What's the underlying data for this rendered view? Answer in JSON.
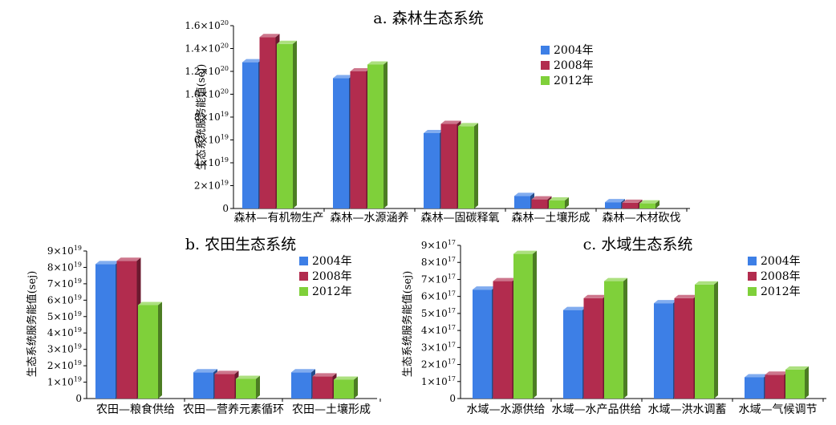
{
  "colors": {
    "s2004": "#3d7fe6",
    "s2008": "#b22c4e",
    "s2012": "#7fd03a"
  },
  "chart_data": [
    {
      "type": "bar",
      "title": "a. 森林生态系统",
      "ylabel": "生态系统服务能值(sej)",
      "categories": [
        "森林—有机物生产",
        "森林—水源涵养",
        "森林—固碳释氧",
        "森林—土壤形成",
        "森林—木材砍伐"
      ],
      "series": [
        {
          "name": "2004年",
          "values": [
            1.28e+20,
            1.14e+20,
            6.6e+19,
            1.1e+19,
            5.5e+18
          ]
        },
        {
          "name": "2008年",
          "values": [
            1.5e+20,
            1.2e+20,
            7.4e+19,
            8e+18,
            5e+18
          ]
        },
        {
          "name": "2012年",
          "values": [
            1.44e+20,
            1.26e+20,
            7.2e+19,
            7e+18,
            4.5e+18
          ]
        }
      ],
      "ylim": [
        0,
        1.6e+20
      ],
      "yticks": [
        {
          "m": "0",
          "e": ""
        },
        {
          "m": "2×10",
          "e": "19"
        },
        {
          "m": "4×10",
          "e": "19"
        },
        {
          "m": "6×10",
          "e": "19"
        },
        {
          "m": "8×10",
          "e": "19"
        },
        {
          "m": "1.0×10",
          "e": "20"
        },
        {
          "m": "1.2×10",
          "e": "20"
        },
        {
          "m": "1.4×10",
          "e": "20"
        },
        {
          "m": "1.6×10",
          "e": "20"
        }
      ],
      "legend": "right"
    },
    {
      "type": "bar",
      "title": "b. 农田生态系统",
      "ylabel": "生态系统服务能值(sej)",
      "categories": [
        "农田—粮食供给",
        "农田—营养元素循环",
        "农田—土壤形成"
      ],
      "series": [
        {
          "name": "2004年",
          "values": [
            8.2e+19,
            1.6e+19,
            1.6e+19
          ]
        },
        {
          "name": "2008年",
          "values": [
            8.4e+19,
            1.5e+19,
            1.35e+19
          ]
        },
        {
          "name": "2012年",
          "values": [
            5.7e+19,
            1.2e+19,
            1.15e+19
          ]
        }
      ],
      "ylim": [
        0,
        9e+19
      ],
      "yticks": [
        {
          "m": "0",
          "e": ""
        },
        {
          "m": "1×10",
          "e": "19"
        },
        {
          "m": "2×10",
          "e": "19"
        },
        {
          "m": "3×10",
          "e": "19"
        },
        {
          "m": "4×10",
          "e": "19"
        },
        {
          "m": "5×10",
          "e": "19"
        },
        {
          "m": "6×10",
          "e": "19"
        },
        {
          "m": "7×10",
          "e": "19"
        },
        {
          "m": "8×10",
          "e": "19"
        },
        {
          "m": "9×10",
          "e": "19"
        }
      ],
      "legend": "right"
    },
    {
      "type": "bar",
      "title": "c. 水域生态系统",
      "ylabel": "生态系统服务能值(sej)",
      "categories": [
        "水域—水源供给",
        "水域—水产品供给",
        "水域—洪水调蓄",
        "水域—气候调节"
      ],
      "series": [
        {
          "name": "2004年",
          "values": [
            6.4e+17,
            5.2e+17,
            5.6e+17,
            1.25e+17
          ]
        },
        {
          "name": "2008年",
          "values": [
            6.9e+17,
            5.9e+17,
            5.9e+17,
            1.4e+17
          ]
        },
        {
          "name": "2012年",
          "values": [
            8.5e+17,
            6.9e+17,
            6.7e+17,
            1.7e+17
          ]
        }
      ],
      "ylim": [
        0,
        9e+17
      ],
      "yticks": [
        {
          "m": "0",
          "e": ""
        },
        {
          "m": "1×10",
          "e": "17"
        },
        {
          "m": "2×10",
          "e": "17"
        },
        {
          "m": "3×10",
          "e": "17"
        },
        {
          "m": "4×10",
          "e": "17"
        },
        {
          "m": "5×10",
          "e": "17"
        },
        {
          "m": "6×10",
          "e": "17"
        },
        {
          "m": "7×10",
          "e": "17"
        },
        {
          "m": "8×10",
          "e": "17"
        },
        {
          "m": "9×10",
          "e": "17"
        }
      ],
      "legend": "right"
    }
  ]
}
